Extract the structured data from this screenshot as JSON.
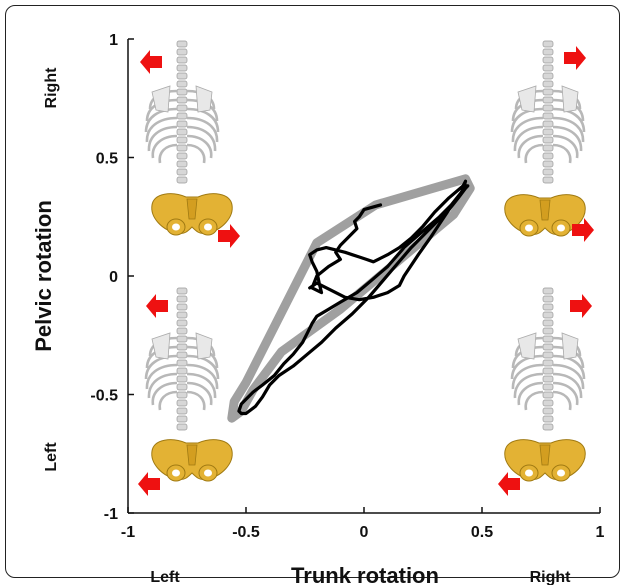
{
  "chart_data": {
    "type": "line",
    "xlabel": "Trunk rotation",
    "ylabel": "Pelvic rotation",
    "xlim": [
      -1,
      1
    ],
    "ylim": [
      -1,
      1
    ],
    "x_ticks": [
      -1,
      -0.5,
      0,
      0.5,
      1
    ],
    "x_tick_labels": [
      "-1",
      "-0.5",
      "0",
      "0.5",
      "1"
    ],
    "y_ticks": [
      1,
      0.5,
      0,
      -0.5,
      -1
    ],
    "y_tick_labels": [
      "1",
      "0.5",
      "0",
      "-0.5",
      "-1"
    ],
    "grid": false,
    "side_labels": {
      "x_left": "Left",
      "x_right": "Right",
      "y_top": "Right",
      "y_bottom": "Left"
    },
    "series": [
      {
        "style": "band",
        "color": "#a0a0a0",
        "x": [
          -0.2,
          0.05,
          0.43,
          0.45,
          0.38,
          -0.1,
          -0.35,
          -0.47,
          -0.52,
          -0.56,
          -0.55,
          -0.5,
          -0.2
        ],
        "y": [
          0.14,
          0.3,
          0.41,
          0.37,
          0.26,
          -0.14,
          -0.32,
          -0.48,
          -0.57,
          -0.6,
          -0.53,
          -0.45,
          0.14
        ]
      },
      {
        "style": "line",
        "color": "#000000",
        "x": [
          0.07,
          0.0,
          -0.02,
          -0.04,
          -0.03,
          -0.07,
          -0.1,
          -0.12,
          -0.1,
          -0.15,
          -0.2,
          -0.22,
          -0.18,
          -0.19,
          -0.2,
          -0.22,
          -0.23,
          -0.2,
          -0.16,
          -0.12,
          -0.08,
          -0.05,
          -0.02,
          0.01,
          0.04,
          0.06,
          0.1,
          0.15,
          0.2,
          0.25,
          0.3,
          0.36,
          0.42,
          0.43,
          0.42,
          0.38,
          0.32,
          0.25,
          0.17,
          0.1,
          0.03,
          -0.03,
          -0.1,
          -0.15,
          -0.2,
          -0.22,
          -0.24,
          -0.26,
          -0.3,
          -0.34,
          -0.38,
          -0.43,
          -0.47,
          -0.5,
          -0.52,
          -0.53,
          -0.52,
          -0.5,
          -0.46,
          -0.43,
          -0.4,
          -0.36,
          -0.3,
          -0.24,
          -0.18,
          -0.12,
          -0.05,
          0.02,
          0.08,
          0.14,
          0.2,
          0.26,
          0.32,
          0.37,
          0.41,
          0.43,
          0.44,
          0.43,
          0.4,
          0.36,
          0.32,
          0.28,
          0.23,
          0.17,
          0.15,
          0.1,
          0.04,
          -0.02,
          -0.08,
          -0.14,
          -0.2,
          -0.23
        ],
        "y": [
          0.3,
          0.28,
          0.25,
          0.23,
          0.2,
          0.16,
          0.13,
          0.1,
          0.07,
          0.04,
          0.0,
          -0.05,
          -0.07,
          -0.03,
          0.02,
          0.06,
          0.09,
          0.11,
          0.12,
          0.11,
          0.1,
          0.09,
          0.08,
          0.07,
          0.06,
          0.07,
          0.09,
          0.12,
          0.16,
          0.21,
          0.27,
          0.33,
          0.38,
          0.4,
          0.36,
          0.31,
          0.25,
          0.19,
          0.12,
          0.04,
          -0.02,
          -0.07,
          -0.11,
          -0.14,
          -0.17,
          -0.2,
          -0.24,
          -0.28,
          -0.33,
          -0.37,
          -0.42,
          -0.46,
          -0.49,
          -0.52,
          -0.54,
          -0.57,
          -0.58,
          -0.58,
          -0.55,
          -0.51,
          -0.46,
          -0.42,
          -0.38,
          -0.33,
          -0.28,
          -0.22,
          -0.16,
          -0.09,
          -0.02,
          0.05,
          0.12,
          0.18,
          0.24,
          0.3,
          0.35,
          0.38,
          0.38,
          0.37,
          0.33,
          0.28,
          0.22,
          0.16,
          0.09,
          0.0,
          -0.04,
          -0.07,
          -0.09,
          -0.1,
          -0.09,
          -0.06,
          -0.03,
          -0.05
        ]
      }
    ]
  },
  "figure": {
    "arrow_color": "#ee1111",
    "bone_color": "#d7d7d7",
    "pelvis_color": "#e3b234"
  }
}
